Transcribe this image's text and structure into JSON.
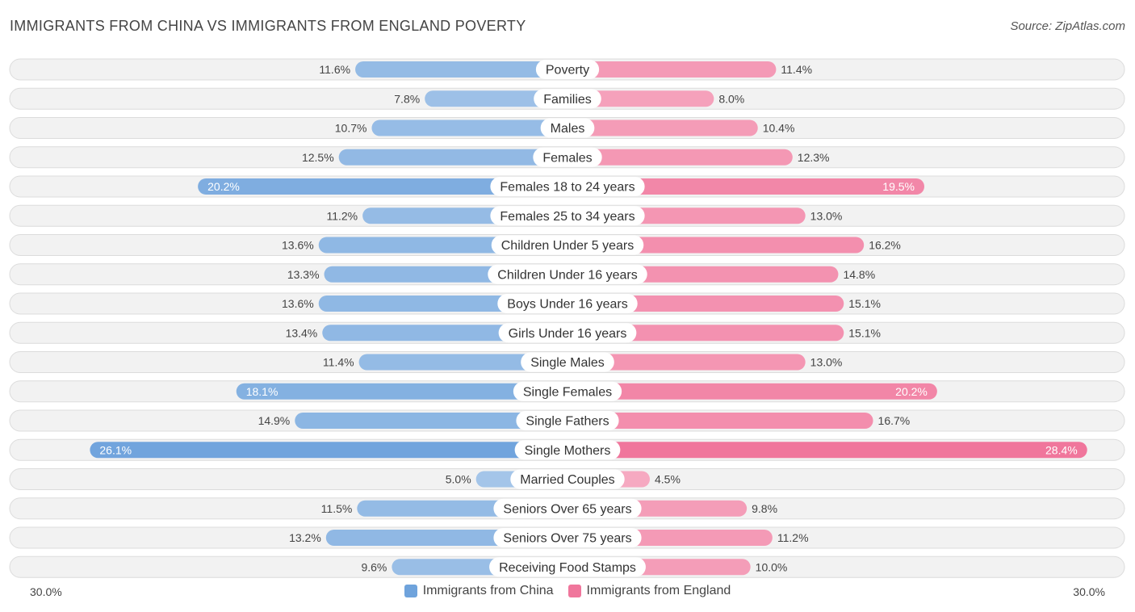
{
  "title": "IMMIGRANTS FROM CHINA VS IMMIGRANTS FROM ENGLAND POVERTY",
  "source": "Source: ZipAtlas.com",
  "axis": {
    "left_label": "30.0%",
    "right_label": "30.0%"
  },
  "legend": [
    {
      "name": "Immigrants from China",
      "color": "#6fa3dc"
    },
    {
      "name": "Immigrants from England",
      "color": "#f0769c"
    }
  ],
  "chart_data": {
    "type": "bar",
    "orientation": "horizontal-diverging",
    "title": "IMMIGRANTS FROM CHINA VS IMMIGRANTS FROM ENGLAND POVERTY",
    "xlim": [
      -30,
      30
    ],
    "categories": [
      "Poverty",
      "Families",
      "Males",
      "Females",
      "Females 18 to 24 years",
      "Females 25 to 34 years",
      "Children Under 5 years",
      "Children Under 16 years",
      "Boys Under 16 years",
      "Girls Under 16 years",
      "Single Males",
      "Single Females",
      "Single Fathers",
      "Single Mothers",
      "Married Couples",
      "Seniors Over 65 years",
      "Seniors Over 75 years",
      "Receiving Food Stamps"
    ],
    "series": [
      {
        "name": "Immigrants from China",
        "values": [
          11.6,
          7.8,
          10.7,
          12.5,
          20.2,
          11.2,
          13.6,
          13.3,
          13.6,
          13.4,
          11.4,
          18.1,
          14.9,
          26.1,
          5.0,
          11.5,
          13.2,
          9.6
        ],
        "labels": [
          "11.6%",
          "7.8%",
          "10.7%",
          "12.5%",
          "20.2%",
          "11.2%",
          "13.6%",
          "13.3%",
          "13.6%",
          "13.4%",
          "11.4%",
          "18.1%",
          "14.9%",
          "26.1%",
          "5.0%",
          "11.5%",
          "13.2%",
          "9.6%"
        ]
      },
      {
        "name": "Immigrants from England",
        "values": [
          11.4,
          8.0,
          10.4,
          12.3,
          19.5,
          13.0,
          16.2,
          14.8,
          15.1,
          15.1,
          13.0,
          20.2,
          16.7,
          28.4,
          4.5,
          9.8,
          11.2,
          10.0
        ],
        "labels": [
          "11.4%",
          "8.0%",
          "10.4%",
          "12.3%",
          "19.5%",
          "13.0%",
          "16.2%",
          "14.8%",
          "15.1%",
          "15.1%",
          "13.0%",
          "20.2%",
          "16.7%",
          "28.4%",
          "4.5%",
          "9.8%",
          "11.2%",
          "10.0%"
        ]
      }
    ]
  }
}
